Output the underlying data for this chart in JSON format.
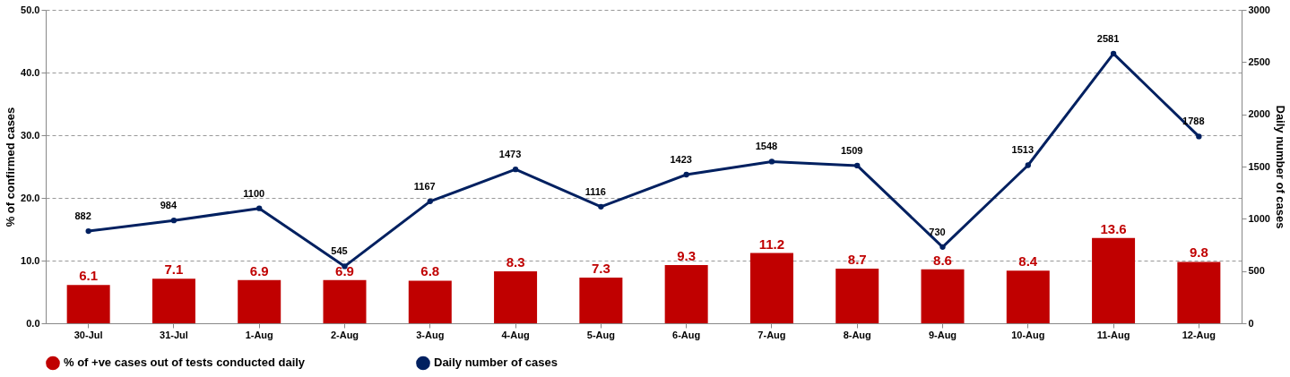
{
  "chart_data": {
    "type": "bar",
    "categories": [
      "30-Jul",
      "31-Jul",
      "1-Aug",
      "2-Aug",
      "3-Aug",
      "4-Aug",
      "5-Aug",
      "6-Aug",
      "7-Aug",
      "8-Aug",
      "9-Aug",
      "10-Aug",
      "11-Aug",
      "12-Aug"
    ],
    "ylabel": "% of confirmed cases",
    "y2label": "Daily number of cases",
    "ylim": [
      0,
      50
    ],
    "yticks": [
      {
        "value": 0,
        "label": "0.0"
      },
      {
        "value": 10,
        "label": "10.0"
      },
      {
        "value": 20,
        "label": "20.0"
      },
      {
        "value": 30,
        "label": "30.0"
      },
      {
        "value": 40,
        "label": "40.0"
      },
      {
        "value": 50,
        "label": "50.0"
      }
    ],
    "y2lim": [
      0,
      3000
    ],
    "y2ticks": [
      0,
      500,
      1000,
      1500,
      2000,
      2500,
      3000
    ],
    "grid": "y",
    "legend": "bottom",
    "data_labels": true,
    "marker": "circle",
    "line_style": "solid",
    "series": [
      {
        "name": "% of +ve cases out of tests conducted daily",
        "color": "#c00000",
        "values": [
          6.1,
          7.1,
          6.9,
          6.9,
          6.8,
          8.3,
          7.3,
          9.3,
          11.2,
          8.7,
          8.6,
          8.4,
          13.6,
          9.8
        ]
      },
      {
        "name": "Daily  number of cases",
        "type": "line",
        "axis": "y2",
        "color": "#002060",
        "values": [
          882,
          984,
          1100,
          545,
          1167,
          1473,
          1116,
          1423,
          1548,
          1509,
          730,
          1513,
          2581,
          1788
        ]
      }
    ]
  }
}
